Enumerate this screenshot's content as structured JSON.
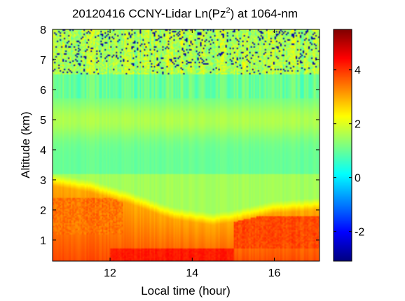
{
  "chart_data": {
    "type": "heatmap",
    "title_prefix": "20120416 CCNY-Lidar Ln(Pz",
    "title_superscript": "2",
    "title_suffix": ") at 1064-nm",
    "xlabel": "Local time (hour)",
    "ylabel": "Altitude (km)",
    "xlim": [
      10.6,
      17.1
    ],
    "ylim": [
      0.3,
      8
    ],
    "x_ticks": [
      12,
      14,
      16
    ],
    "y_ticks": [
      1,
      2,
      3,
      4,
      5,
      6,
      7,
      8
    ],
    "colorbar_range": [
      -3.1,
      5.5
    ],
    "colorbar_ticks": [
      -2,
      0,
      2,
      4
    ],
    "colormap": "jet",
    "features": {
      "boundary_layer_top_km": [
        {
          "x": 10.6,
          "y": 2.8
        },
        {
          "x": 11.5,
          "y": 2.6
        },
        {
          "x": 12.5,
          "y": 2.2
        },
        {
          "x": 13.5,
          "y": 1.7
        },
        {
          "x": 14.5,
          "y": 1.5
        },
        {
          "x": 15.0,
          "y": 1.6
        },
        {
          "x": 16.0,
          "y": 1.9
        },
        {
          "x": 17.1,
          "y": 2.0
        }
      ],
      "near_surface_max_value": 4.3,
      "boundary_layer_value": 3.0,
      "free_troposphere_value": 1.0,
      "upper_noise_value": 1.6
    }
  }
}
